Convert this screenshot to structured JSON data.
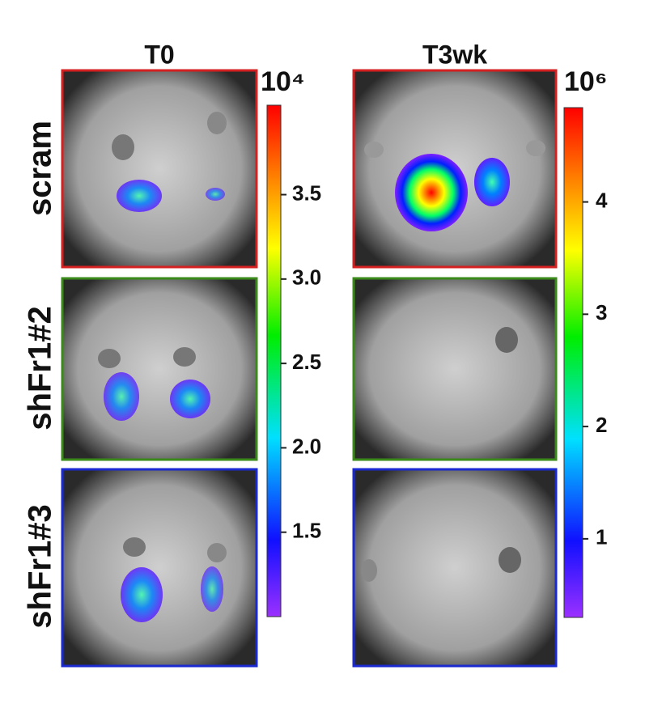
{
  "columns": [
    "T0",
    "T3wk"
  ],
  "rows": [
    "scram",
    "shFr1#2",
    "shFr1#3"
  ],
  "colorbars": [
    {
      "exponent": "10⁴",
      "lim": [
        1.0,
        4.03
      ],
      "ticks": [
        1.5,
        {
          "value": 2,
          "label": "2.0"
        },
        2.5,
        {
          "value": 3,
          "label": "3.0"
        },
        3.5
      ]
    },
    {
      "exponent": "10⁶",
      "lim": [
        0.3,
        4.84
      ],
      "ticks": [
        1,
        2,
        3,
        4
      ]
    }
  ]
}
